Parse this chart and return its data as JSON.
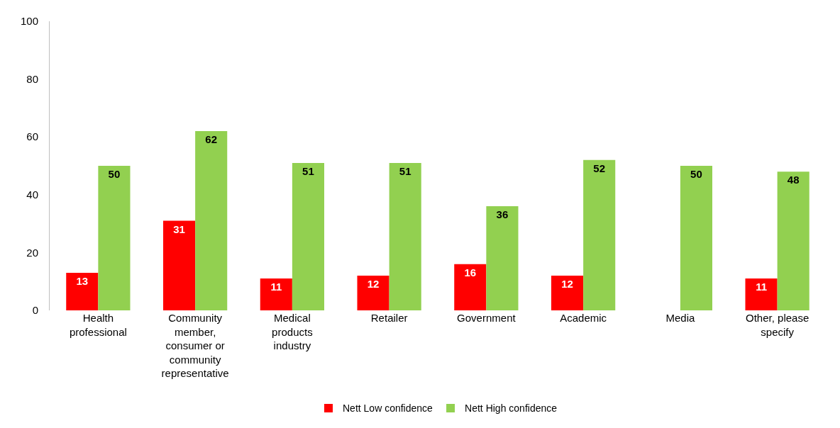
{
  "chart_data": {
    "type": "bar",
    "categories": [
      "Health professional",
      "Community member, consumer or community representative",
      "Medical products industry",
      "Retailer",
      "Government",
      "Academic",
      "Media",
      "Other, please specify"
    ],
    "series": [
      {
        "name": "Nett Low confidence",
        "color": "#ff0000",
        "values": [
          13,
          31,
          11,
          12,
          16,
          12,
          null,
          11
        ]
      },
      {
        "name": "Nett High confidence",
        "color": "#92d050",
        "values": [
          50,
          62,
          51,
          51,
          36,
          52,
          50,
          48
        ]
      }
    ],
    "ylim": [
      0,
      100
    ],
    "yticks": [
      0,
      20,
      40,
      60,
      80,
      100
    ],
    "grid": false,
    "legend": "bottom",
    "data_labels": true
  }
}
